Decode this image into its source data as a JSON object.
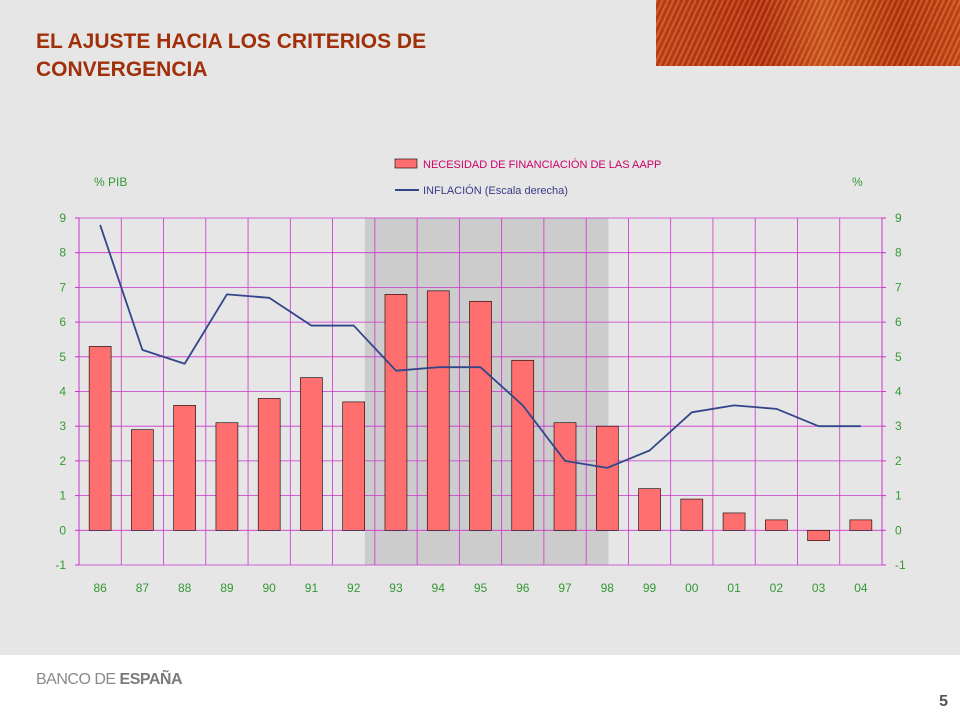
{
  "slide": {
    "title_line1": "EL AJUSTE HACIA LOS CRITERIOS DE",
    "title_line2": "CONVERGENCIA",
    "page_number": "5",
    "logo_part1": "BANCO DE ",
    "logo_part2": "ESPAÑA"
  },
  "chart_data": {
    "type": "bar",
    "categories": [
      "86",
      "87",
      "88",
      "89",
      "90",
      "91",
      "92",
      "93",
      "94",
      "95",
      "96",
      "97",
      "98",
      "99",
      "00",
      "01",
      "02",
      "03",
      "04"
    ],
    "series": [
      {
        "name": "NECESIDAD DE FINANCIACIÓN DE LAS AAPP",
        "type": "bar",
        "axis": "left",
        "color": "#ff6f6f",
        "values": [
          5.3,
          2.9,
          3.6,
          3.1,
          3.8,
          4.4,
          3.7,
          6.8,
          6.9,
          6.6,
          4.9,
          3.1,
          3.0,
          1.2,
          0.9,
          0.5,
          0.3,
          -0.3,
          0.3
        ]
      },
      {
        "name": "INFLACIÓN (Escala derecha)",
        "type": "line",
        "axis": "right",
        "color": "#33468a",
        "values": [
          8.8,
          5.2,
          4.8,
          6.8,
          6.7,
          5.9,
          5.9,
          4.6,
          4.7,
          4.7,
          3.6,
          2.0,
          1.8,
          2.3,
          3.4,
          3.6,
          3.5,
          3.0,
          3.0
        ]
      }
    ],
    "ylabel": "% PIB",
    "y2label": "%",
    "ylim": [
      -1,
      9
    ],
    "y2lim": [
      -1,
      9
    ],
    "yticks": [
      "-1",
      "0",
      "1",
      "2",
      "3",
      "4",
      "5",
      "6",
      "7",
      "8",
      "9"
    ],
    "shaded_categories": [
      "93",
      "98"
    ],
    "grid": true,
    "legend_position": "top-center",
    "colors": {
      "plot_bg": "#e6e6e6",
      "grid": "#cc33cc",
      "axis_label": "#339933",
      "shade": "#cccccc"
    }
  }
}
